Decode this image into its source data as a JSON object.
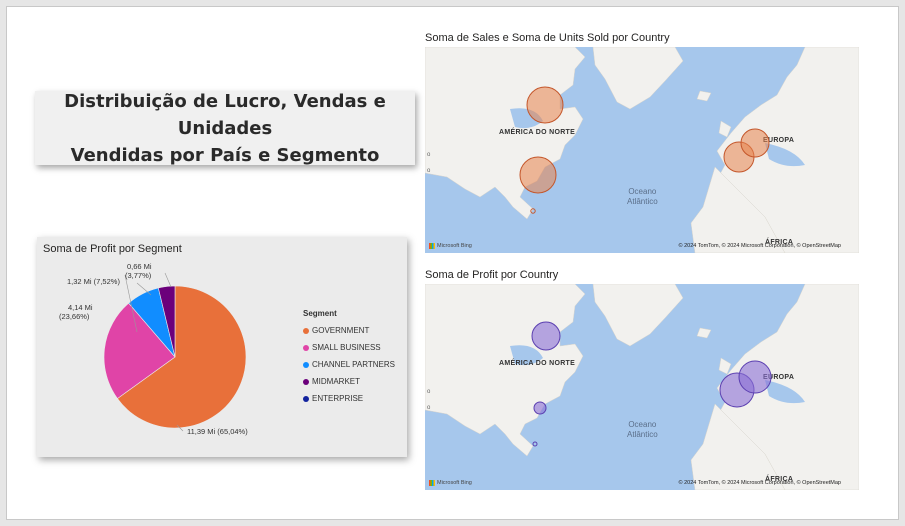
{
  "title": {
    "line1": "Distribuição de Lucro, Vendas e Unidades",
    "line2": "Vendidas por País e Segmento"
  },
  "pie": {
    "title": "Soma de Profit por Segment",
    "legend_title": "Segment",
    "labels": {
      "government_value": "11,39 Mi (65,04%)",
      "small_value": "4,14 Mi",
      "small_pct": "(23,66%)",
      "channel_value": "1,32 Mi (7,52%)",
      "mid_value": "0,66 Mi",
      "mid_pct": "(3,77%)"
    }
  },
  "chart_data": [
    {
      "type": "pie",
      "title": "Soma de Profit por Segment",
      "legend_title": "Segment",
      "unit": "Mi",
      "slices": [
        {
          "name": "GOVERNMENT",
          "value": 11.39,
          "percent": 65.04,
          "color": "#e8703a"
        },
        {
          "name": "SMALL BUSINESS",
          "value": 4.14,
          "percent": 23.66,
          "color": "#e044a7"
        },
        {
          "name": "CHANNEL PARTNERS",
          "value": 1.32,
          "percent": 7.52,
          "color": "#118dff"
        },
        {
          "name": "MIDMARKET",
          "value": 0.66,
          "percent": 3.77,
          "color": "#6b007b"
        },
        {
          "name": "ENTERPRISE",
          "value": 0.0,
          "percent": 0.0,
          "color": "#12239e"
        }
      ],
      "legend": [
        "GOVERNMENT",
        "SMALL BUSINESS",
        "CHANNEL PARTNERS",
        "MIDMARKET",
        "ENTERPRISE"
      ],
      "legend_position": "right"
    }
  ],
  "map1": {
    "title": "Soma de Sales e Soma de Units Sold por Country",
    "bubble_color": "#e8844f",
    "region_na": "AMÉRICA DO NORTE",
    "region_eu": "EUROPA",
    "region_af": "ÁFRICA",
    "ocean_1": "Oceano",
    "ocean_2": "Atlântico",
    "credit": "© 2024 TomTom, © 2024 Microsoft Corporation, © OpenStreetMap",
    "bing": "Microsoft Bing"
  },
  "map2": {
    "title": "Soma de Profit por Country",
    "bubble_color": "#8a6fd6",
    "region_na": "AMÉRICA DO NORTE",
    "region_eu": "EUROPA",
    "region_af": "ÁFRICA",
    "ocean_1": "Oceano",
    "ocean_2": "Atlântico",
    "credit": "© 2024 TomTom, © 2024 Microsoft Corporation, © OpenStreetMap",
    "bing": "Microsoft Bing"
  }
}
